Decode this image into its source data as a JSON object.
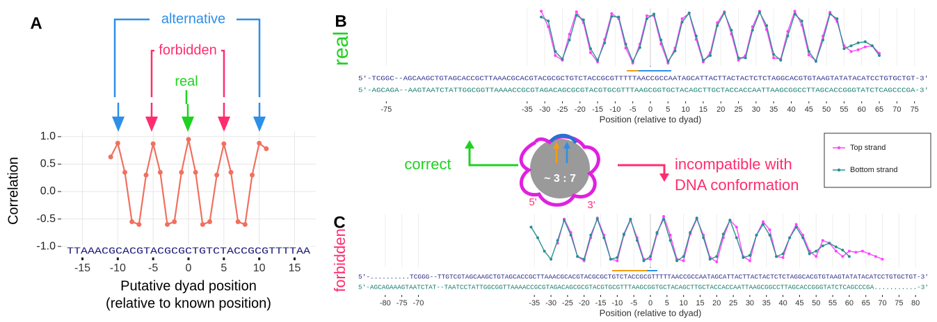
{
  "chart_data": [
    {
      "type": "line",
      "panel": "A",
      "y_label": "Correlation",
      "x_label": [
        "Putative dyad position",
        "(relative to known position)"
      ],
      "annotations": [
        "alternative",
        "forbidden",
        "real"
      ],
      "sequence": "TTAAACGCACGTACGCGCTGTCTACCGCGTTTTAA",
      "x": [
        -11,
        -10,
        -9,
        -8,
        -7,
        -6,
        -5,
        -4,
        -3,
        -2,
        -1,
        0,
        1,
        2,
        3,
        4,
        5,
        6,
        7,
        8,
        9,
        10,
        11
      ],
      "values": [
        0.63,
        0.88,
        0.35,
        -0.55,
        -0.6,
        0.3,
        0.87,
        0.35,
        -0.6,
        -0.55,
        0.35,
        0.95,
        0.35,
        -0.6,
        -0.55,
        0.3,
        0.87,
        0.35,
        -0.55,
        -0.6,
        0.3,
        0.88,
        0.78
      ],
      "color": "#f07060",
      "xlim": [
        -18,
        18
      ],
      "xticks": [
        -15,
        -10,
        -5,
        0,
        5,
        10,
        15
      ],
      "ylim": [
        -1.1,
        1.1
      ],
      "yticks": [
        {
          "value": -1,
          "label": "-1.0"
        },
        {
          "value": -0.5,
          "label": "-0.5"
        },
        {
          "value": 0,
          "label": "0.0"
        },
        {
          "value": 0.5,
          "label": "0.5"
        },
        {
          "value": 1,
          "label": "1.0"
        }
      ],
      "grid": true
    },
    {
      "type": "line",
      "panel": "B",
      "side_label": "real",
      "x_label": "Position (relative to dyad)",
      "sequence": [
        "5'-TCGGC--AGCAAGCTGTAGCACCGCTTAAACGCACGTACGCGCTGTCTACCGCGTTTTTAACCGCCAATAGCATTACTTACTACTCTCTAGGCACGTGTAAGTATATACATCCTGTGCTGT-3'",
        "5'-AGCAGA--AAGTAATCTATTGGCGGTTAAAACCGCGTAGACAGCGCGTACGTGCGTTTAAGCGGTGCTACAGCTTGCTACCACCAATTAAGCGGCCTTAGCACCGGGTATCTCAGCCCGA-3'"
      ],
      "x": [
        -31,
        -29,
        -27,
        -25,
        -23,
        -21,
        -19,
        -17,
        -15,
        -13,
        -11,
        -9,
        -7,
        -5,
        -3,
        -1,
        1,
        3,
        5,
        7,
        9,
        11,
        13,
        15,
        17,
        19,
        21,
        23,
        25,
        27,
        29,
        31,
        33,
        35,
        37,
        39,
        41,
        43,
        45,
        47,
        49,
        51,
        53,
        55,
        57,
        59,
        61,
        63,
        65
      ],
      "series": [
        {
          "name": "Top strand",
          "color": "#ff44ff",
          "values": [
            0.95,
            0.68,
            0.18,
            0.1,
            0.55,
            0.94,
            0.75,
            0.23,
            0.07,
            0.46,
            0.91,
            0.82,
            0.31,
            0.05,
            0.38,
            0.87,
            0.87,
            0.38,
            0.05,
            0.31,
            0.82,
            0.91,
            0.46,
            0.07,
            0.23,
            0.75,
            0.94,
            0.55,
            0.1,
            0.18,
            0.68,
            0.95,
            0.63,
            0.14,
            0.12,
            0.6,
            0.95,
            0.71,
            0.19,
            0.09,
            0.52,
            0.93,
            0.77,
            0.35,
            0.25,
            0.28,
            0.33,
            0.35,
            0.22
          ]
        },
        {
          "name": "Bottom strand",
          "color": "#2a8f8f",
          "values": [
            0.85,
            0.78,
            0.25,
            0.12,
            0.45,
            0.88,
            0.8,
            0.3,
            0.1,
            0.4,
            0.86,
            0.85,
            0.38,
            0.08,
            0.32,
            0.82,
            0.9,
            0.45,
            0.08,
            0.26,
            0.76,
            0.92,
            0.52,
            0.1,
            0.18,
            0.7,
            0.92,
            0.62,
            0.14,
            0.14,
            0.62,
            0.93,
            0.7,
            0.2,
            0.1,
            0.52,
            0.9,
            0.78,
            0.25,
            0.08,
            0.45,
            0.9,
            0.82,
            0.3,
            0.35,
            0.4,
            0.42,
            0.35,
            0.18
          ]
        }
      ],
      "xlim": [
        -80,
        80
      ],
      "xticks": [
        -75,
        -35,
        -30,
        -25,
        -20,
        -15,
        -10,
        -5,
        0,
        5,
        10,
        15,
        20,
        25,
        30,
        35,
        40,
        45,
        50,
        55,
        60,
        65,
        70,
        75
      ],
      "ylim": [
        0,
        1
      ],
      "grid": true
    },
    {
      "type": "line",
      "panel": "C",
      "side_label": "forbidden",
      "x_label": "Position (relative to dyad)",
      "sequence": [
        "5'-..........TCGGG--TTGTCGTAGCAAGCTGTAGCACCGCTTAAACGCACGTACGCGCTGTCTACCGCGTTTTTAACCGCCAATAGCATTACTTACTACTCTCTAGGCACGTGTAAGTATATACATCCTGTGCTGT-3'",
        "5'-AGCAGAAAGTAATCTAT--TAATCCTATTGGCGGTTAAAACCGCGTAGACAGCGCGTACGTGCGTTTAAGCGGTGCTACAGCTTGCTACCACCAATTAAGCGGCCTTAGCACCGGGTATCTCAGCCCGA...........-3'"
      ],
      "x": [
        -36,
        -34,
        -32,
        -30,
        -28,
        -26,
        -24,
        -22,
        -20,
        -18,
        -16,
        -14,
        -12,
        -10,
        -8,
        -6,
        -4,
        -2,
        0,
        2,
        4,
        6,
        8,
        10,
        12,
        14,
        16,
        18,
        20,
        22,
        24,
        26,
        28,
        30,
        32,
        34,
        36,
        38,
        40,
        42,
        44,
        46,
        48,
        50,
        52,
        54,
        56,
        58,
        60,
        62,
        64,
        66,
        68,
        70
      ],
      "series": [
        {
          "color": "#ff44ff",
          "values": [
            null,
            null,
            null,
            null,
            0.45,
            0.9,
            0.65,
            0.2,
            0.12,
            0.55,
            0.92,
            0.6,
            0.15,
            0.12,
            0.6,
            0.88,
            0.55,
            0.15,
            0.15,
            0.62,
            0.95,
            0.6,
            0.15,
            0.12,
            0.62,
            0.9,
            0.6,
            0.18,
            0.1,
            0.55,
            0.88,
            0.75,
            0.2,
            0.12,
            0.6,
            0.85,
            0.7,
            0.2,
            0.18,
            0.55,
            0.8,
            0.6,
            0.3,
            0.2,
            0.5,
            0.45,
            0.3,
            0.2,
            0.3,
            0.28,
            0.3,
            0.25,
            0.2,
            0.15
          ]
        },
        {
          "color": "#2a8f8f",
          "values": [
            0.75,
            0.55,
            0.3,
            0.15,
            0.5,
            0.88,
            0.6,
            0.2,
            0.15,
            0.6,
            0.9,
            0.55,
            0.15,
            0.18,
            0.62,
            0.9,
            0.5,
            0.12,
            0.2,
            0.65,
            0.9,
            0.5,
            0.12,
            0.2,
            0.65,
            0.92,
            0.55,
            0.15,
            0.2,
            0.62,
            0.88,
            0.55,
            0.18,
            0.22,
            0.6,
            0.8,
            0.6,
            0.2,
            0.25,
            0.55,
            0.75,
            0.55,
            0.25,
            0.3,
            0.4,
            0.45,
            0.38,
            0.32,
            0.2,
            null,
            null,
            null,
            null,
            null
          ]
        }
      ],
      "xlim": [
        -85,
        85
      ],
      "xticks": [
        -80,
        -75,
        -70,
        -35,
        -30,
        -25,
        -20,
        -15,
        -10,
        -5,
        0,
        5,
        10,
        15,
        20,
        25,
        30,
        35,
        40,
        45,
        50,
        55,
        60,
        65,
        70,
        75,
        80
      ],
      "ylim": [
        0,
        1
      ],
      "grid": true
    }
  ],
  "diagram": {
    "left_label": "correct",
    "right_label": [
      "incompatible with",
      "DNA conformation"
    ],
    "ratio": "~ 3 : 7",
    "five_prime": "5'",
    "three_prime": "3'"
  }
}
